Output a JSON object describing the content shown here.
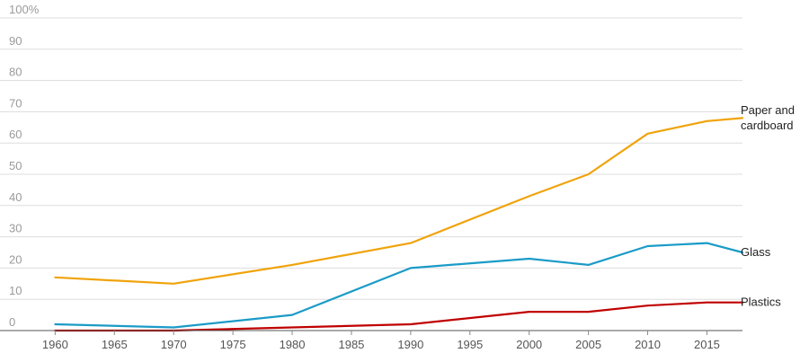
{
  "chart_data": {
    "type": "line",
    "title": "",
    "xlabel": "",
    "ylabel": "",
    "xlim": [
      1958,
      2018
    ],
    "ylim": [
      0,
      100
    ],
    "x_ticks": [
      1960,
      1965,
      1970,
      1975,
      1980,
      1985,
      1990,
      1995,
      2000,
      2005,
      2010,
      2015
    ],
    "y_ticks": [
      {
        "value": 0,
        "label": "0"
      },
      {
        "value": 10,
        "label": "10"
      },
      {
        "value": 20,
        "label": "20"
      },
      {
        "value": 30,
        "label": "30"
      },
      {
        "value": 40,
        "label": "40"
      },
      {
        "value": 50,
        "label": "50"
      },
      {
        "value": 60,
        "label": "60"
      },
      {
        "value": 70,
        "label": "70"
      },
      {
        "value": 80,
        "label": "80"
      },
      {
        "value": 90,
        "label": "90"
      },
      {
        "value": 100,
        "label": "100%"
      }
    ],
    "grid": true,
    "legend": "labels at line ends (right)",
    "series": [
      {
        "name": "Paper and cardboard",
        "label_lines": [
          "Paper and",
          "cardboard"
        ],
        "color": "#f0a30a",
        "x": [
          1960,
          1970,
          1980,
          1990,
          2000,
          2005,
          2010,
          2015,
          2018
        ],
        "values": [
          17,
          15,
          21,
          28,
          43,
          50,
          63,
          67,
          68
        ]
      },
      {
        "name": "Glass",
        "label_lines": [
          "Glass"
        ],
        "color": "#1a9bc7",
        "x": [
          1960,
          1970,
          1980,
          1990,
          2000,
          2005,
          2010,
          2015,
          2018
        ],
        "values": [
          2,
          1,
          5,
          20,
          23,
          21,
          27,
          28,
          25
        ]
      },
      {
        "name": "Plastics",
        "label_lines": [
          "Plastics"
        ],
        "color": "#c00000",
        "x": [
          1960,
          1970,
          1980,
          1990,
          2000,
          2005,
          2010,
          2015,
          2018
        ],
        "values": [
          0,
          0,
          1,
          2,
          6,
          6,
          8,
          9,
          9
        ]
      }
    ]
  }
}
